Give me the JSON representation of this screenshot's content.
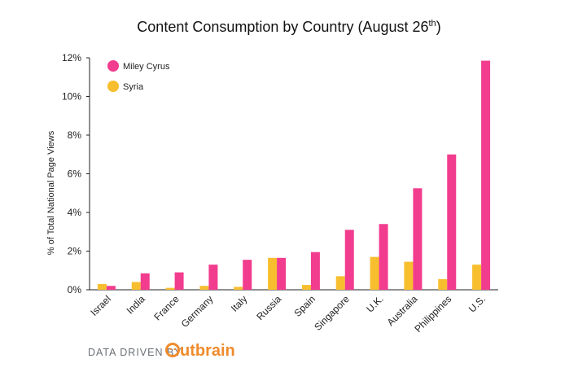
{
  "chart_data": {
    "type": "bar",
    "title": "Content Consumption by Country (August 26",
    "title_sup": "th",
    "title_end": ")",
    "ylabel": "% of Total National Page Views",
    "xlabel": "",
    "ylim": [
      0,
      12
    ],
    "yticks": [
      "0%",
      "2%",
      "4%",
      "6%",
      "8%",
      "10%",
      "12%"
    ],
    "grid": false,
    "legend_position": "top-left",
    "categories": [
      "Israel",
      "India",
      "France",
      "Germany",
      "Italy",
      "Russia",
      "Spain",
      "Singapore",
      "U.K.",
      "Australia",
      "Philippines",
      "U.S."
    ],
    "series": [
      {
        "name": "Miley Cyrus",
        "color": "#f23c8e",
        "values": [
          0.2,
          0.85,
          0.9,
          1.3,
          1.55,
          1.65,
          1.95,
          3.1,
          3.4,
          5.25,
          7.0,
          11.85
        ]
      },
      {
        "name": "Syria",
        "color": "#f7be2e",
        "values": [
          0.3,
          0.4,
          0.1,
          0.2,
          0.15,
          1.65,
          0.25,
          0.7,
          1.7,
          1.45,
          0.55,
          1.3
        ]
      }
    ]
  },
  "footer": {
    "label": "DATA DRIVEN BY",
    "brand": "utbrain",
    "brand_icon": "outbrain-logo-o-icon",
    "brand_color": "#f08b2c"
  }
}
